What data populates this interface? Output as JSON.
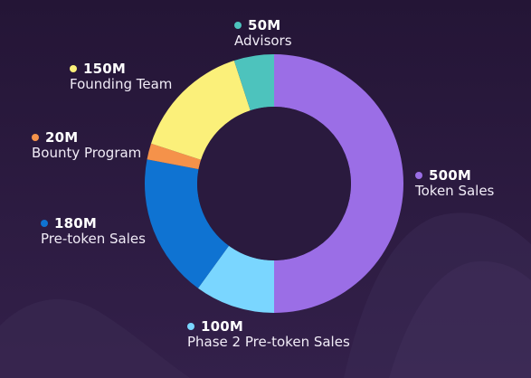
{
  "chart_data": {
    "type": "pie",
    "donut": true,
    "unit": "M",
    "slices": [
      {
        "name": "Token Sales",
        "value": 500,
        "label": "500M",
        "color": "#9b6ee6"
      },
      {
        "name": "Phase 2 Pre-token Sales",
        "value": 100,
        "label": "100M",
        "color": "#7ad6ff"
      },
      {
        "name": "Pre-token Sales",
        "value": 180,
        "label": "180M",
        "color": "#0f73d2"
      },
      {
        "name": "Bounty Program",
        "value": 20,
        "label": "20M",
        "color": "#f5924a"
      },
      {
        "name": "Founding Team",
        "value": 150,
        "label": "150M",
        "color": "#fbf07a"
      },
      {
        "name": "Advisors",
        "value": 50,
        "label": "50M",
        "color": "#4dc3bd"
      }
    ],
    "background_color": "#2a1a3e"
  }
}
